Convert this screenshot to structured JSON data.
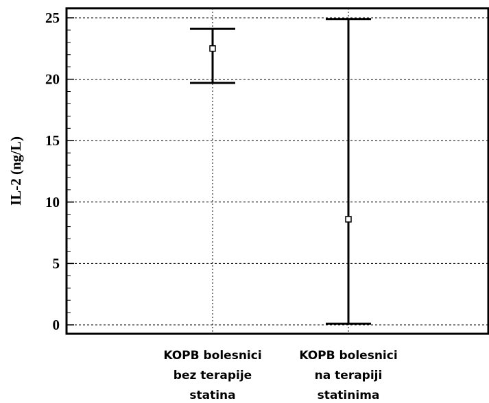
{
  "chart_data": {
    "type": "error_bar",
    "title": "",
    "xlabel": "",
    "ylabel": "IL-2 (ng/L)",
    "ylim": [
      0,
      25
    ],
    "yticks": [
      0,
      5,
      10,
      15,
      20,
      25
    ],
    "grid": true,
    "categories": [
      [
        "KOPB bolesnici",
        "bez terapije",
        "statina"
      ],
      [
        "KOPB bolesnici",
        "na terapiji",
        "statinima"
      ]
    ],
    "series": [
      {
        "points": [
          {
            "category_index": 0,
            "center": 22.5,
            "low": 19.7,
            "high": 24.1
          },
          {
            "category_index": 1,
            "center": 8.6,
            "low": 0.1,
            "high": 24.9
          }
        ]
      }
    ]
  }
}
